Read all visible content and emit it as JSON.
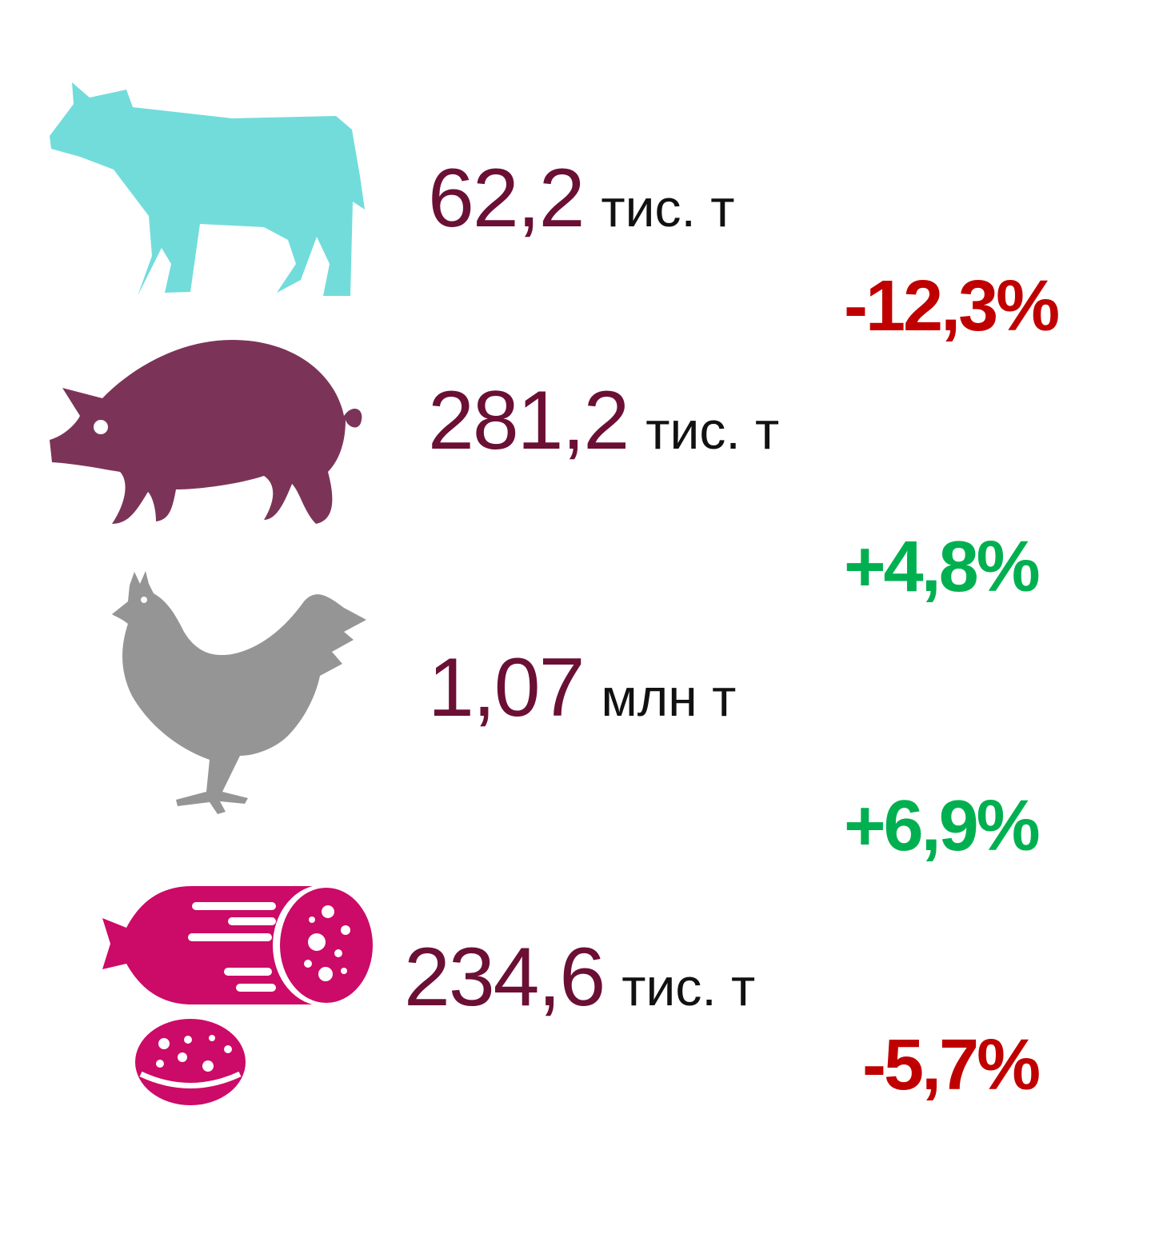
{
  "items": [
    {
      "icon": "cow-icon",
      "value": "62,2",
      "unit": "тис. т",
      "change": "-12,3%",
      "icon_color": "#72DCDB",
      "change_color": "#C00000"
    },
    {
      "icon": "pig-icon",
      "value": "281,2",
      "unit": "тис. т",
      "change": "+4,8%",
      "icon_color": "#7B3457",
      "change_color": "#00B050"
    },
    {
      "icon": "chicken-icon",
      "value": "1,07",
      "unit": "млн т",
      "change": "+6,9%",
      "icon_color": "#959595",
      "change_color": "#00B050"
    },
    {
      "icon": "sausage-icon",
      "value": "234,6",
      "unit": "тис. т",
      "change": "-5,7%",
      "icon_color": "#CC0A67",
      "change_color": "#C00000"
    }
  ],
  "colors": {
    "value": "#6B0F35",
    "unit": "#111111"
  }
}
